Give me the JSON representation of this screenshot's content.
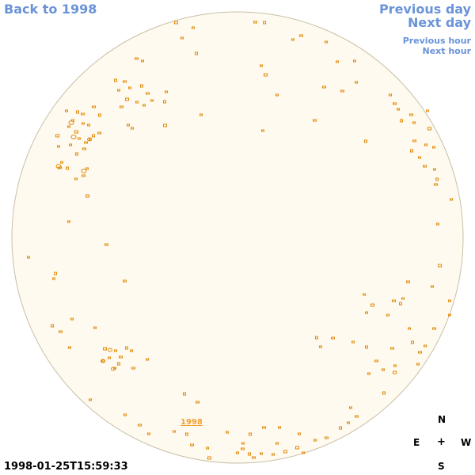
{
  "nav": {
    "back": "Back to 1998",
    "previous_day": "Previous day",
    "next_day": "Next day",
    "previous_hour": "Previous hour",
    "next_hour": "Next hour"
  },
  "year_label": "1998",
  "compass": {
    "north": "N",
    "east": "E",
    "center": "+",
    "west": "W",
    "south": "S"
  },
  "timestamp": "1998-01-25T15:59:33",
  "colors": {
    "disk_fill": "#fffaef",
    "disk_border": "#c9bfa8",
    "contour": "#e08a0a",
    "link": "#6a93d8"
  }
}
